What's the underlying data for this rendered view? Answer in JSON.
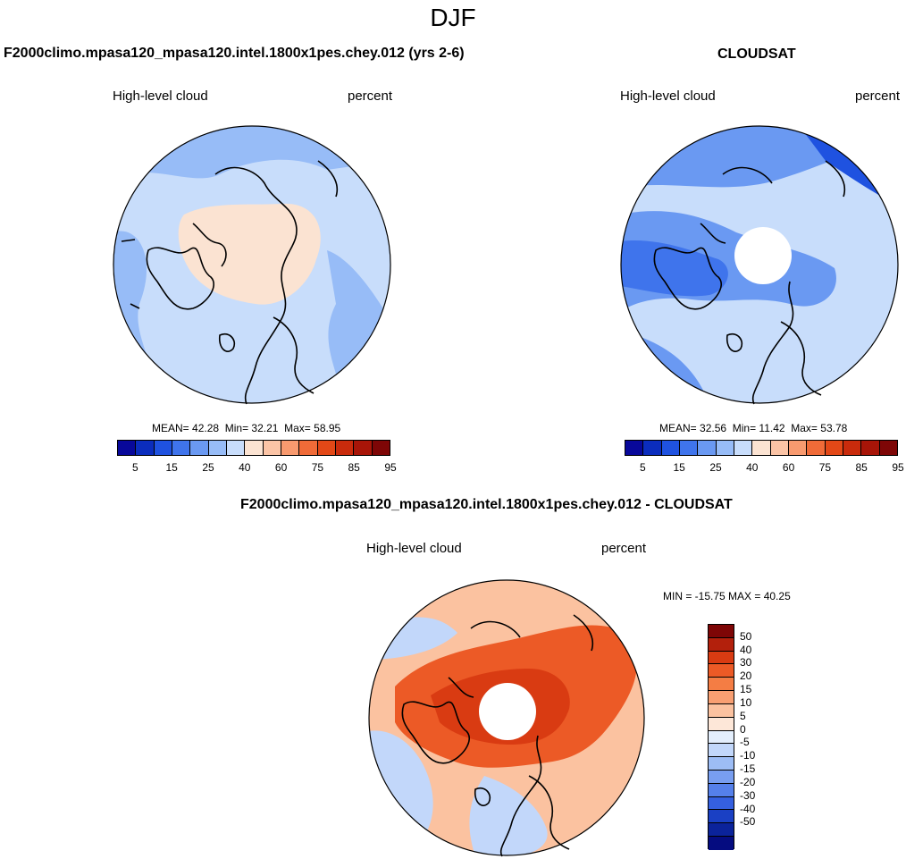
{
  "title": "DJF",
  "panels": {
    "model": {
      "title": "F2000climo.mpasa120_mpasa120.intel.1800x1pes.chey.012 (yrs 2-6)",
      "variable": "High-level cloud",
      "units": "percent",
      "stats": {
        "mean_label": "MEAN=",
        "mean": "42.28",
        "min_label": "Min=",
        "min": "32.21",
        "max_label": "Max=",
        "max": "58.95"
      }
    },
    "obs": {
      "title": "CLOUDSAT",
      "variable": "High-level cloud",
      "units": "percent",
      "stats": {
        "mean_label": "MEAN=",
        "mean": "32.56",
        "min_label": "Min=",
        "min": "11.42",
        "max_label": "Max=",
        "max": "53.78"
      }
    },
    "diff": {
      "title": "F2000climo.mpasa120_mpasa120.intel.1800x1pes.chey.012 - CLOUDSAT",
      "variable": "High-level cloud",
      "units": "percent",
      "stats": "MIN = -15.75 MAX =  40.25"
    }
  },
  "colorbar_main": {
    "colors": [
      "#08089a",
      "#0b2dbd",
      "#1f52e0",
      "#3f74ec",
      "#6a99f2",
      "#97bcf7",
      "#c8ddfb",
      "#fbe3d2",
      "#fbc4a6",
      "#f89a6f",
      "#f06b38",
      "#e34817",
      "#c92b0c",
      "#a81508",
      "#7e0606"
    ],
    "labels": [
      "5",
      "15",
      "25",
      "40",
      "60",
      "75",
      "85",
      "95"
    ]
  },
  "colorbar_diff": {
    "colors": [
      "#7e0606",
      "#b3200c",
      "#d93b12",
      "#ec5a26",
      "#f47d44",
      "#f89f72",
      "#fbc2a0",
      "#fde7d8",
      "#e3eefc",
      "#c2d7fa",
      "#9dbdf5",
      "#789ef0",
      "#5580ea",
      "#3560e0",
      "#1a40c4",
      "#0b239b",
      "#050c80"
    ],
    "labels": [
      "50",
      "40",
      "30",
      "20",
      "15",
      "10",
      "5",
      "0",
      "-5",
      "-10",
      "-15",
      "-20",
      "-30",
      "-40",
      "-50"
    ]
  },
  "map_colors": {
    "model_base": "#c8ddfb",
    "model_outer": "#97bcf7",
    "model_center": "#fbe3d2",
    "obs_base": "#c8ddfb",
    "obs_band": "#6a99f2",
    "obs_dark": "#3f74ec",
    "obs_darkest": "#1f52e0",
    "diff_base": "#fbc2a0",
    "diff_ring": "#ec5a26",
    "diff_blue": "#c2d7fa",
    "diff_dark": "#d93b12"
  }
}
